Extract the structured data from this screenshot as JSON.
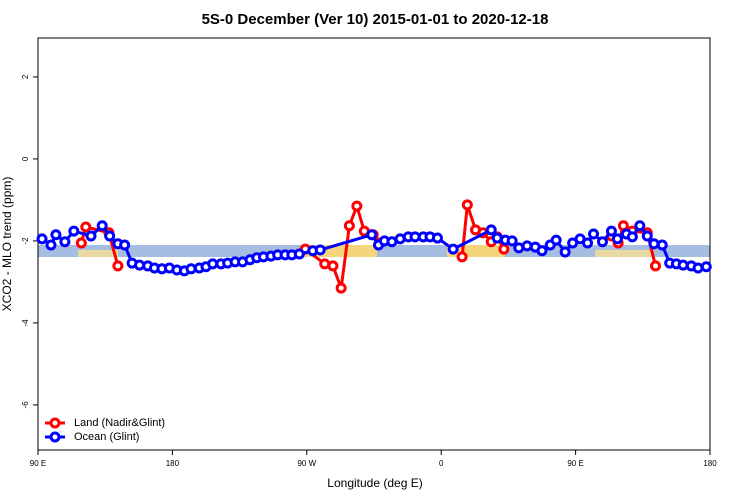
{
  "chart_data": {
    "type": "line",
    "title": "5S-0 December (Ver 10)   2015-01-01 to 2020-12-18",
    "x_label": "Longitude (deg E)",
    "y_label": "XCO2 - MLO trend (ppm)",
    "xlim": [
      90,
      540
    ],
    "xticks": [
      {
        "value": 90,
        "label": "90 E"
      },
      180,
      {
        "value": 270,
        "label": "90 W"
      },
      {
        "value": 360,
        "label": "0"
      },
      {
        "value": 450,
        "label": "90 E"
      },
      {
        "value": 540,
        "label": "180"
      }
    ],
    "ylim": [
      -7.1,
      2.95
    ],
    "yticks": [
      -6,
      -4,
      -2,
      0,
      2
    ],
    "legend": "bottom-left",
    "series": [
      {
        "name": "Land (Nadir&Glint)",
        "color": "#ff0000",
        "x": [
          119,
          122,
          137.5,
          143.5,
          200,
          269,
          282,
          287.5,
          293,
          298.5,
          303.5,
          308.5,
          314.5,
          319,
          340,
          374,
          377.5,
          383,
          388,
          393.5,
          397.5,
          402,
          440,
          474,
          478.5,
          482,
          488,
          498,
          503.5
        ],
        "values": [
          -2.05,
          -1.66,
          -1.8,
          -2.61,
          null,
          -2.2,
          -2.56,
          -2.61,
          -3.15,
          -1.63,
          -1.15,
          -1.76,
          -1.85,
          -2.05,
          null,
          -2.39,
          -1.12,
          -1.73,
          -1.8,
          -2.02,
          -1.9,
          -2.2,
          null,
          -1.88,
          -2.05,
          -1.63,
          -1.76,
          -1.8,
          -2.61
        ]
      },
      {
        "name": "Ocean (Glint)",
        "color": "#0000ff",
        "x": [
          92.7,
          98.7,
          102,
          108,
          114,
          125.5,
          133,
          138,
          143.5,
          148,
          153,
          158,
          163.5,
          168,
          173,
          178,
          183,
          188,
          192.5,
          198,
          202.5,
          207,
          212.5,
          217,
          222,
          227,
          232,
          236.5,
          241,
          246,
          250.5,
          255.5,
          260,
          265,
          274,
          279,
          313.5,
          318,
          322,
          327,
          332.5,
          338,
          342.5,
          348,
          352.5,
          357.5,
          368,
          393.5,
          397.5,
          403,
          407.5,
          412,
          417.5,
          423,
          427.5,
          433,
          437,
          443,
          448,
          453,
          458,
          462,
          468,
          474,
          478,
          484,
          488,
          493,
          498,
          502.5,
          508,
          513,
          517.5,
          522,
          527.5,
          532,
          537.5
        ],
        "values": [
          -1.95,
          -2.1,
          -1.85,
          -2.02,
          -1.76,
          -1.88,
          -1.63,
          -1.88,
          -2.07,
          -2.1,
          -2.54,
          -2.59,
          -2.61,
          -2.66,
          -2.68,
          -2.66,
          -2.71,
          -2.73,
          -2.68,
          -2.66,
          -2.63,
          -2.56,
          -2.56,
          -2.54,
          -2.51,
          -2.51,
          -2.46,
          -2.41,
          -2.39,
          -2.37,
          -2.34,
          -2.34,
          -2.34,
          -2.32,
          -2.24,
          -2.22,
          -1.85,
          -2.1,
          -2,
          -2.02,
          -1.95,
          -1.9,
          -1.9,
          -1.9,
          -1.9,
          -1.93,
          -2.2,
          -1.73,
          -1.93,
          -1.98,
          -2,
          -2.17,
          -2.12,
          -2.15,
          -2.24,
          -2.1,
          -1.98,
          -2.27,
          -2.05,
          -1.95,
          -2.05,
          -1.83,
          -2.02,
          -1.76,
          -1.95,
          -1.83,
          -1.9,
          -1.63,
          -1.88,
          -2.07,
          -2.1,
          -2.54,
          -2.56,
          -2.59,
          -2.61,
          -2.66,
          -2.63
        ]
      }
    ]
  }
}
